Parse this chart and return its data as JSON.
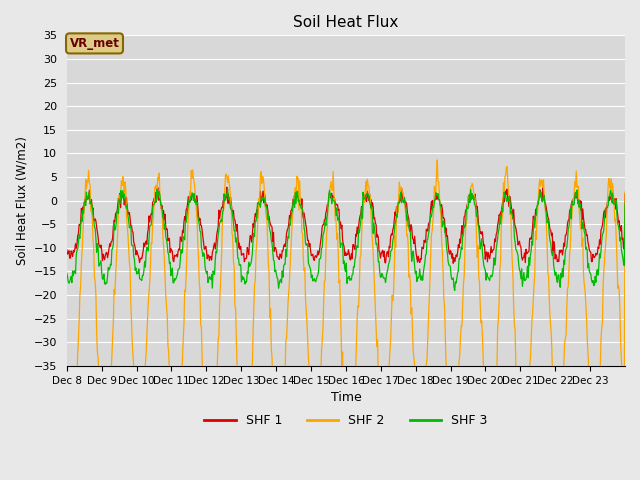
{
  "title": "Soil Heat Flux",
  "ylabel": "Soil Heat Flux (W/m2)",
  "xlabel": "Time",
  "ylim": [
    -35,
    35
  ],
  "yticks": [
    -35,
    -30,
    -25,
    -20,
    -15,
    -10,
    -5,
    0,
    5,
    10,
    15,
    20,
    25,
    30,
    35
  ],
  "xtick_labels": [
    "Dec 8",
    "Dec 9",
    "Dec 10",
    "Dec 11",
    "Dec 12",
    "Dec 13",
    "Dec 14",
    "Dec 15",
    "Dec 16",
    "Dec 17",
    "Dec 18",
    "Dec 19",
    "Dec 20",
    "Dec 21",
    "Dec 22",
    "Dec 23"
  ],
  "legend_labels": [
    "SHF 1",
    "SHF 2",
    "SHF 3"
  ],
  "legend_colors": [
    "#dd0000",
    "#ffa500",
    "#00bb00"
  ],
  "line_colors": [
    "#dd0000",
    "#ffa500",
    "#00bb00"
  ],
  "annotation_text": "VR_met",
  "annotation_box_color": "#ddcc88",
  "annotation_border_color": "#886600",
  "bg_color": "#e8e8e8",
  "plot_bg_color": "#d8d8d8",
  "grid_color": "#ffffff",
  "n_days": 16,
  "seed": 42
}
